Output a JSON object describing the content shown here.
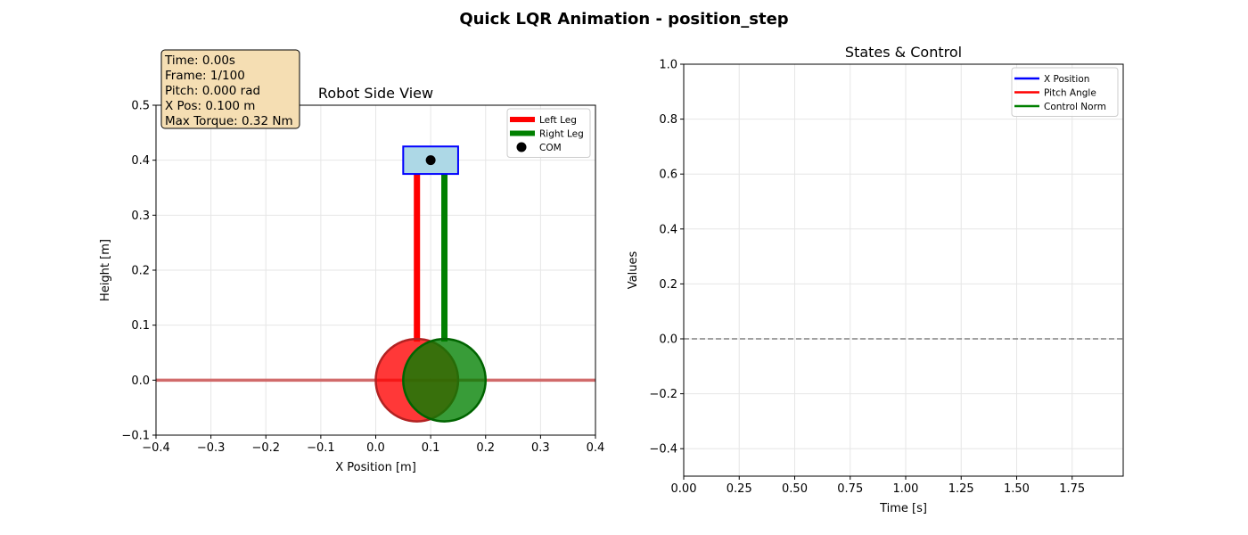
{
  "suptitle": "Quick LQR Animation - position_step",
  "info_box": {
    "lines": [
      "Time: 0.00s",
      "Frame: 1/100",
      "Pitch: 0.000 rad",
      "X Pos: 0.100 m",
      "Max Torque: 0.32 Nm"
    ],
    "background": "#f5deb3"
  },
  "chart_data": [
    {
      "type": "scatter",
      "title": "Robot Side View",
      "xlabel": "X Position [m]",
      "ylabel": "Height [m]",
      "xlim": [
        -0.4,
        0.4
      ],
      "ylim": [
        -0.1,
        0.5
      ],
      "xticks": [
        "−0.4",
        "−0.3",
        "−0.2",
        "−0.1",
        "0.0",
        "0.1",
        "0.2",
        "0.3",
        "0.4"
      ],
      "xtick_values": [
        -0.4,
        -0.3,
        -0.2,
        -0.1,
        0.0,
        0.1,
        0.2,
        0.3,
        0.4
      ],
      "yticks": [
        "−0.1",
        "0.0",
        "0.1",
        "0.2",
        "0.3",
        "0.4",
        "0.5"
      ],
      "ytick_values": [
        -0.1,
        0.0,
        0.1,
        0.2,
        0.3,
        0.4,
        0.5
      ],
      "grid": true,
      "legend_position": "upper-right",
      "legend": [
        {
          "label": "Left Leg",
          "kind": "line",
          "color": "#ff0000"
        },
        {
          "label": "Right Leg",
          "kind": "line",
          "color": "#008000"
        },
        {
          "label": "COM",
          "kind": "dot",
          "color": "#000000"
        }
      ],
      "ground": {
        "y": 0.0,
        "color": "#cd5c5c"
      },
      "body": {
        "x_min": 0.05,
        "x_max": 0.15,
        "y_min": 0.375,
        "y_max": 0.425,
        "fill": "#add8e6",
        "edge": "#0000ff"
      },
      "com": {
        "x": 0.1,
        "y": 0.4
      },
      "legs": [
        {
          "name": "Left Leg",
          "x": 0.075,
          "y_top": 0.38,
          "y_bottom": 0.07,
          "color": "#ff0000"
        },
        {
          "name": "Right Leg",
          "x": 0.125,
          "y_top": 0.38,
          "y_bottom": 0.07,
          "color": "#008000"
        }
      ],
      "wheels": [
        {
          "cx": 0.075,
          "cy": 0.0,
          "r": 0.075,
          "fill": "#ff0000",
          "edge": "#b22222"
        },
        {
          "cx": 0.125,
          "cy": 0.0,
          "r": 0.075,
          "fill": "#008000",
          "edge": "#006400"
        }
      ]
    },
    {
      "type": "line",
      "title": "States & Control",
      "xlabel": "Time [s]",
      "ylabel": "Values",
      "xlim": [
        0.0,
        1.98
      ],
      "ylim": [
        -0.5,
        1.0
      ],
      "xticks": [
        "0.00",
        "0.25",
        "0.50",
        "0.75",
        "1.00",
        "1.25",
        "1.50",
        "1.75"
      ],
      "xtick_values": [
        0.0,
        0.25,
        0.5,
        0.75,
        1.0,
        1.25,
        1.5,
        1.75
      ],
      "yticks": [
        "−0.4",
        "−0.2",
        "0.0",
        "0.2",
        "0.4",
        "0.6",
        "0.8",
        "1.0"
      ],
      "ytick_values": [
        -0.4,
        -0.2,
        0.0,
        0.2,
        0.4,
        0.6,
        0.8,
        1.0
      ],
      "grid": true,
      "legend_position": "upper-right",
      "reference_line": {
        "y": 0.0,
        "color": "#808080",
        "style": "dashed"
      },
      "series": [
        {
          "name": "X Position",
          "color": "#0000ff",
          "x": [],
          "values": []
        },
        {
          "name": "Pitch Angle",
          "color": "#ff0000",
          "x": [],
          "values": []
        },
        {
          "name": "Control Norm",
          "color": "#008000",
          "x": [],
          "values": []
        }
      ]
    }
  ]
}
